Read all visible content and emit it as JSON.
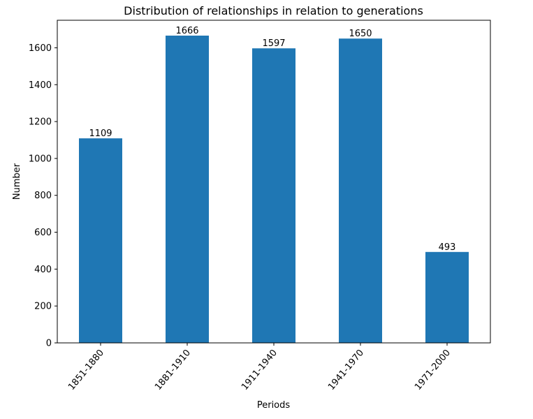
{
  "chart_data": {
    "type": "bar",
    "title": "Distribution of relationships in relation to generations",
    "xlabel": "Periods",
    "ylabel": "Number",
    "categories": [
      "1851-1880",
      "1881-1910",
      "1911-1940",
      "1941-1970",
      "1971-2000"
    ],
    "values": [
      1109,
      1666,
      1597,
      1650,
      493
    ],
    "data_labels": [
      "1109",
      "1666",
      "1597",
      "1650",
      "493"
    ],
    "yticks": [
      0,
      200,
      400,
      600,
      800,
      1000,
      1200,
      1400,
      1600
    ],
    "ylim": [
      0,
      1749.3
    ],
    "grid": false,
    "legend": "none",
    "bar_color": "#1f77b4"
  }
}
